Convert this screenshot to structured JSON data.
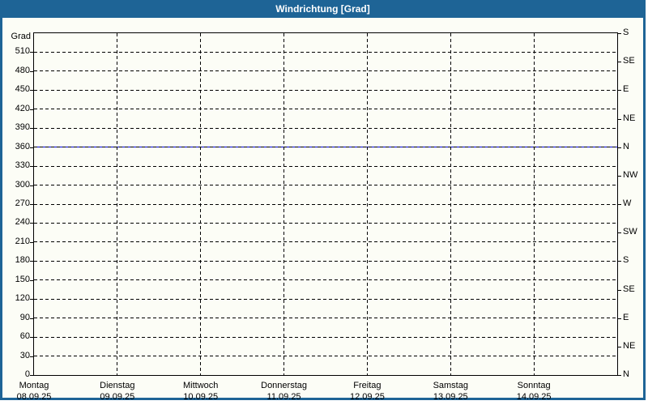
{
  "colors": {
    "frame_blue": "#1e6496",
    "title_text": "#ffffff",
    "background": "#fcfdf6",
    "axis_and_grid": "#000000",
    "series_blue": "#0000dd"
  },
  "chart_data": {
    "type": "line",
    "title": "Windrichtung [Grad]",
    "ylabel_left": "Grad",
    "grid": {
      "horizontal": "dashed",
      "vertical": "dashed"
    },
    "y_axis_left": {
      "min": 0,
      "max": 540,
      "tick_interval": 30,
      "tick_labels_bottom_to_top": [
        0,
        30,
        60,
        90,
        120,
        150,
        180,
        210,
        240,
        270,
        300,
        330,
        360,
        390,
        420,
        450,
        480,
        510
      ]
    },
    "y_axis_right": {
      "tick_interval": 45,
      "labels_top_to_bottom": [
        "S",
        "SE",
        "E",
        "NE",
        "N",
        "NW",
        "W",
        "SW",
        "S",
        "SE",
        "E",
        "NE",
        "N"
      ]
    },
    "x_axis": {
      "days": [
        {
          "name": "Montag",
          "date": "08.09.25"
        },
        {
          "name": "Dienstag",
          "date": "09.09.25"
        },
        {
          "name": "Mittwoch",
          "date": "10.09.25"
        },
        {
          "name": "Donnerstag",
          "date": "11.09.25"
        },
        {
          "name": "Freitag",
          "date": "12.09.25"
        },
        {
          "name": "Samstag",
          "date": "13.09.25"
        },
        {
          "name": "Sonntag",
          "date": "14.09.25"
        }
      ]
    },
    "series": [
      {
        "name": "Windrichtung",
        "color": "#0000dd",
        "constant_value_deg": 360
      }
    ]
  }
}
